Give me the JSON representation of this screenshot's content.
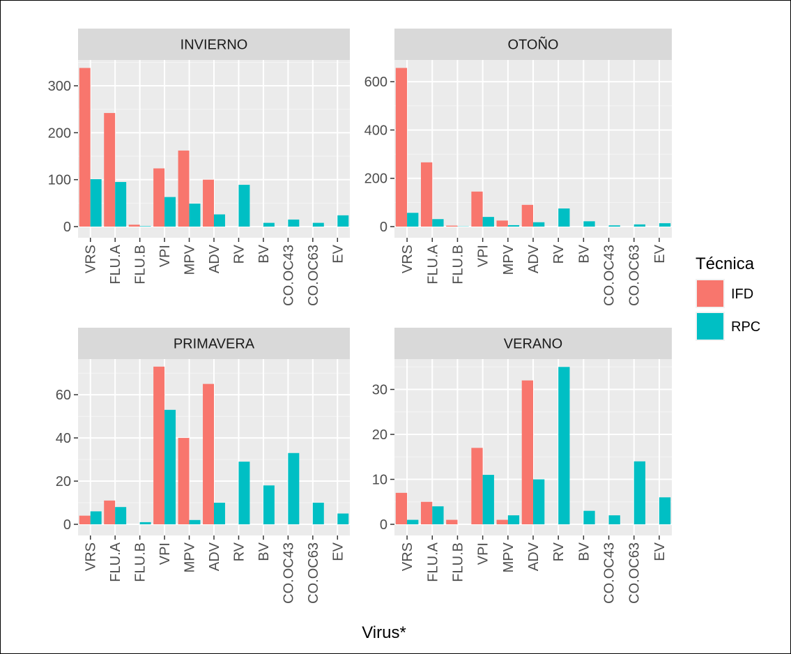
{
  "chart_data": {
    "type": "bar",
    "xlabel": "Virus*",
    "ylabel": "",
    "categories": [
      "VRS",
      "FLU.A",
      "FLU.B",
      "VPI",
      "MPV",
      "ADV",
      "RV",
      "BV",
      "CO.OC43",
      "CO.OC63",
      "EV"
    ],
    "legend": {
      "title": "Técnica",
      "placement": "right",
      "entries": [
        {
          "label": "IFD",
          "color": "#f8766d"
        },
        {
          "label": "RPC",
          "color": "#00bfc4"
        }
      ]
    },
    "grid": true,
    "panels": [
      {
        "title": "INVIERNO",
        "ylim": [
          0,
          355
        ],
        "yticks": [
          0,
          100,
          200,
          300
        ],
        "series": [
          {
            "name": "IFD",
            "values": [
              338,
              242,
              4,
              124,
              162,
              100,
              0,
              0,
              0,
              0,
              0
            ]
          },
          {
            "name": "RPC",
            "values": [
              101,
              95,
              1,
              63,
              49,
              26,
              89,
              8,
              15,
              8,
              24
            ]
          }
        ]
      },
      {
        "title": "OTOÑO",
        "ylim": [
          0,
          690
        ],
        "yticks": [
          0,
          200,
          400,
          600
        ],
        "series": [
          {
            "name": "IFD",
            "values": [
              657,
              266,
              4,
              145,
              25,
              90,
              0,
              0,
              0,
              0,
              0
            ]
          },
          {
            "name": "RPC",
            "values": [
              57,
              31,
              1,
              40,
              6,
              18,
              75,
              22,
              5,
              9,
              14
            ]
          }
        ]
      },
      {
        "title": "PRIMAVERA",
        "ylim": [
          0,
          76.5
        ],
        "yticks": [
          0,
          20,
          40,
          60
        ],
        "series": [
          {
            "name": "IFD",
            "values": [
              4,
              11,
              0,
              73,
              40,
              65,
              0,
              0,
              0,
              0,
              0
            ]
          },
          {
            "name": "RPC",
            "values": [
              6,
              8,
              1,
              53,
              2,
              10,
              29,
              18,
              33,
              10,
              5
            ]
          }
        ]
      },
      {
        "title": "VERANO",
        "ylim": [
          0,
          36.75
        ],
        "yticks": [
          0,
          10,
          20,
          30
        ],
        "series": [
          {
            "name": "IFD",
            "values": [
              7,
              5,
              1,
              17,
              1,
              32,
              0,
              0,
              0,
              0,
              0
            ]
          },
          {
            "name": "RPC",
            "values": [
              1,
              4,
              0,
              11,
              2,
              10,
              35,
              3,
              2,
              14,
              6
            ]
          }
        ]
      }
    ]
  }
}
